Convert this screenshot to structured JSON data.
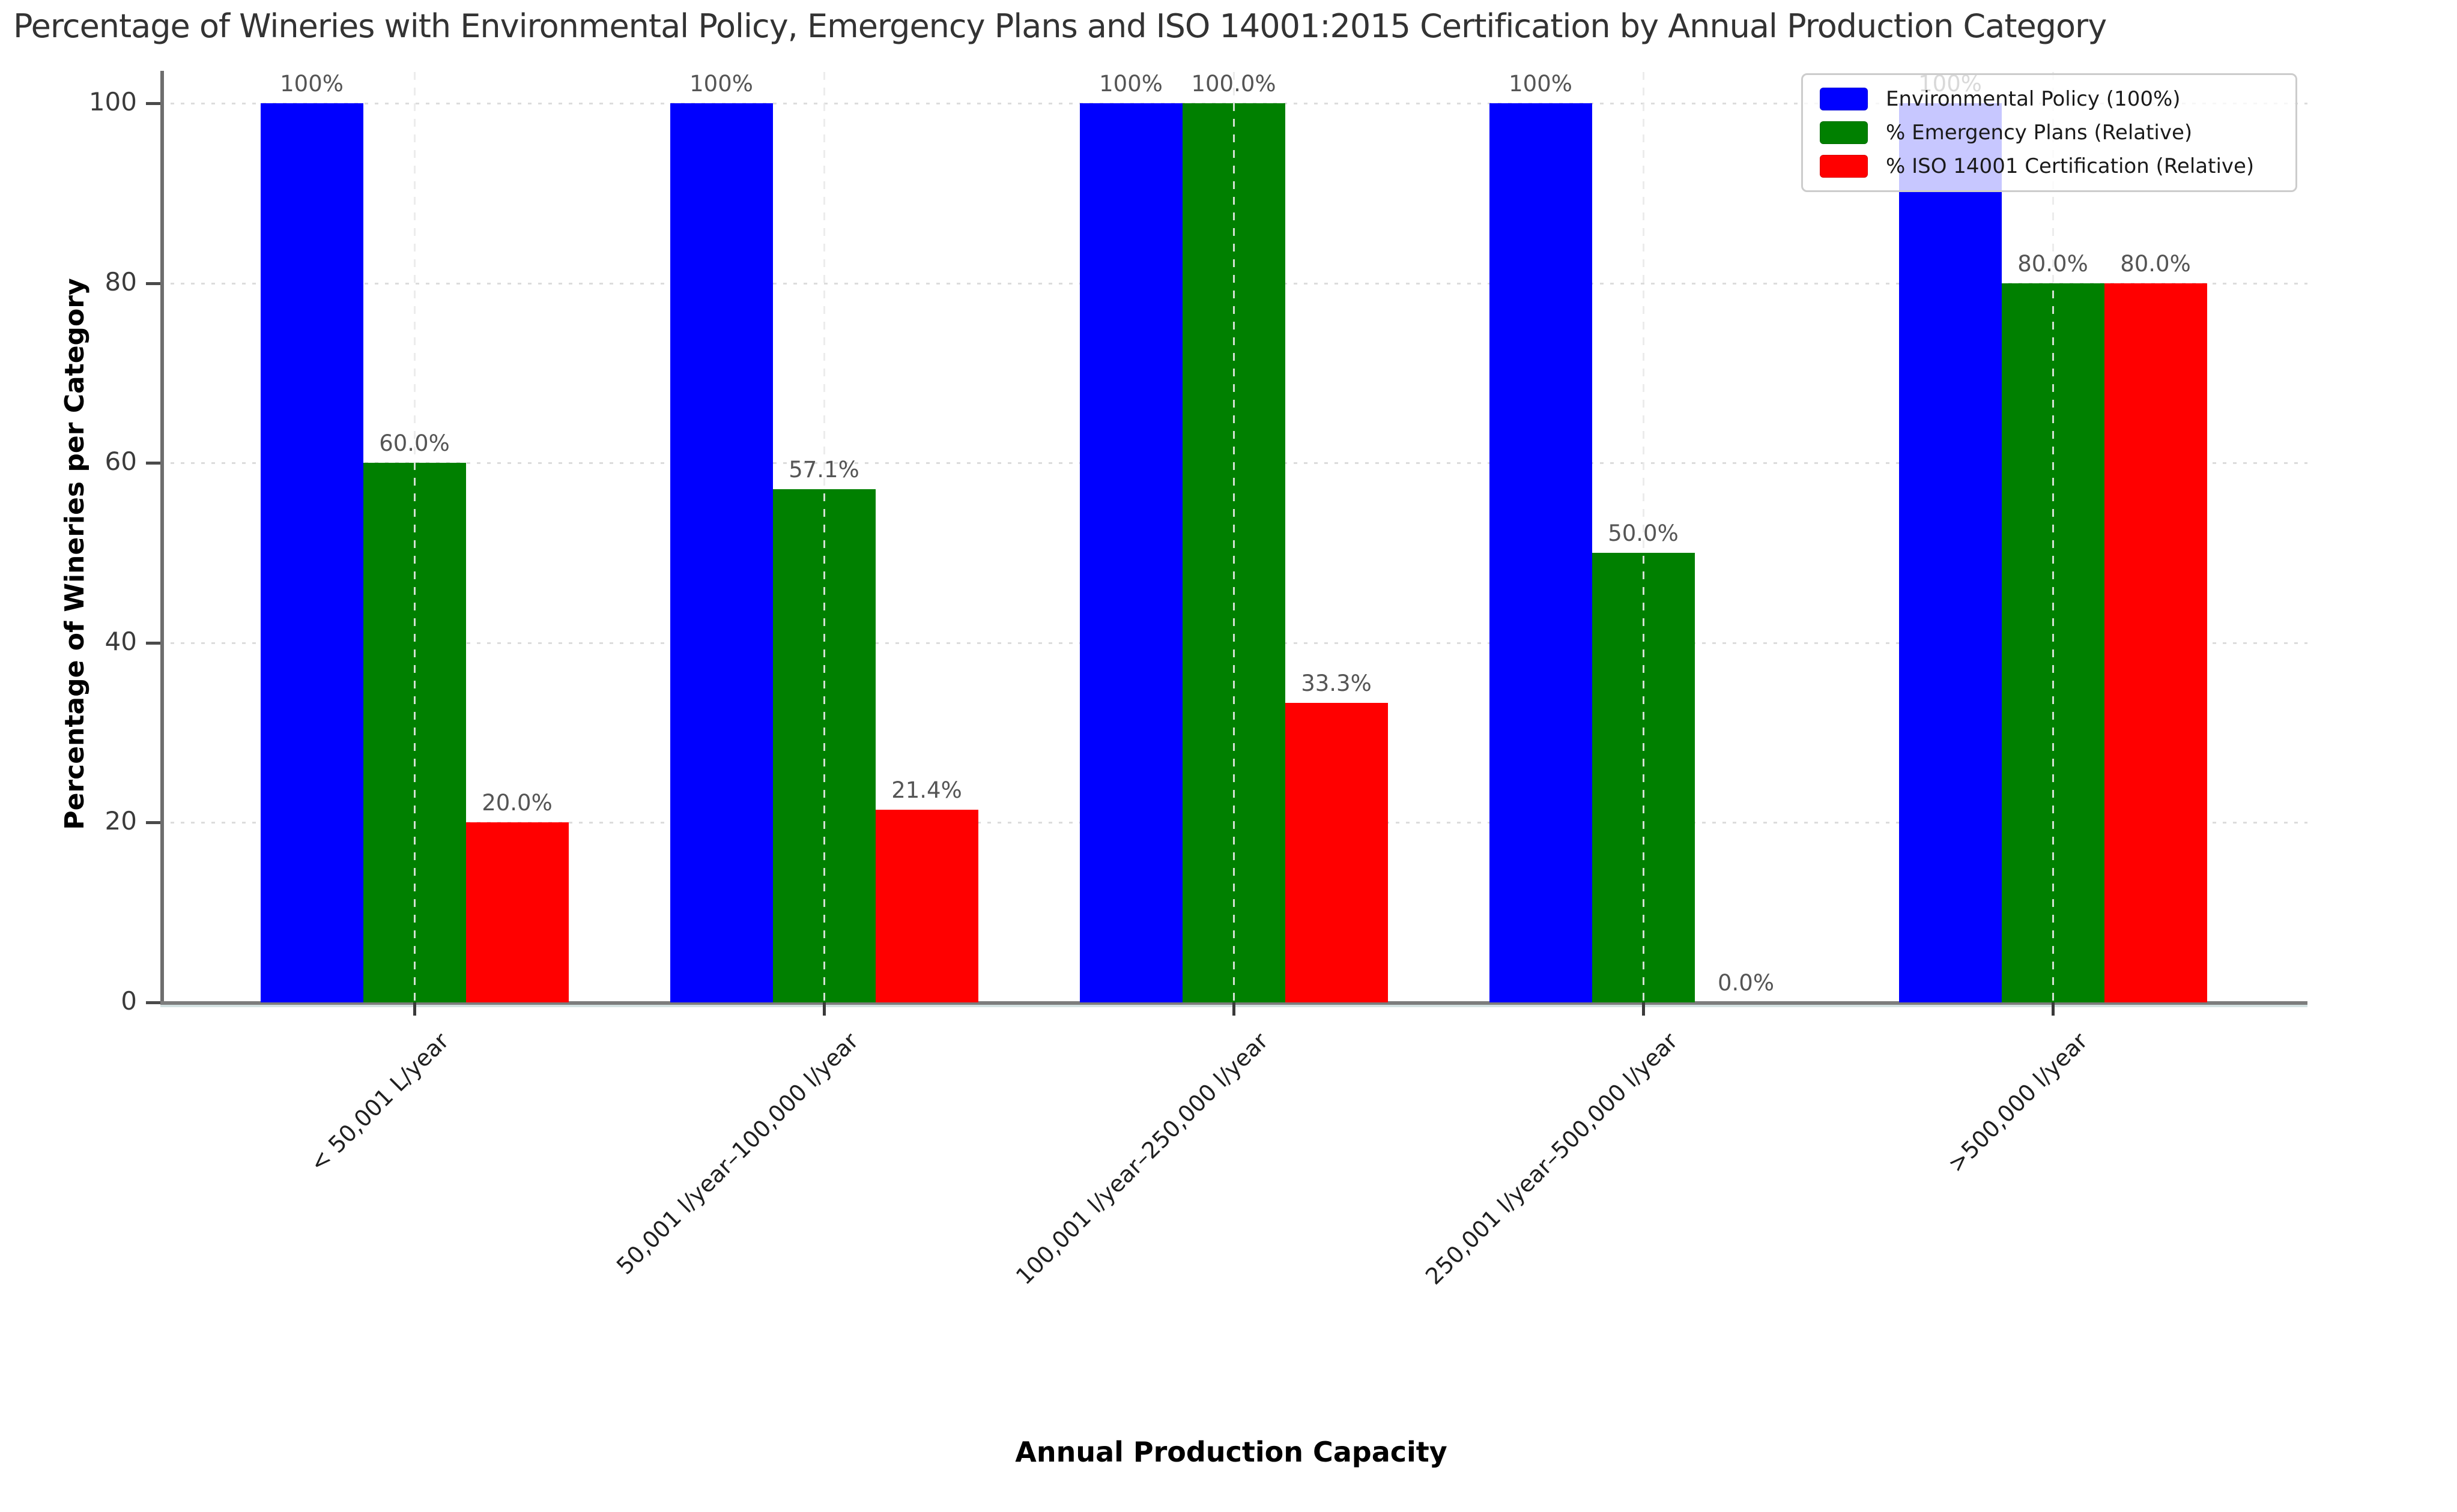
{
  "title": "Percentage of Wineries with Environmental Policy, Emergency Plans and ISO 14001:2015 Certification by Annual Production Category",
  "x_axis": {
    "label": "Annual Production Capacity",
    "tick_labels": [
      "< 50,001  L/year",
      "50,001  l/year–100,000  l/year",
      "100,001  l/year–250,000  l/year",
      "250,001  l/year–500,000  l/year",
      ">500,000  l/year"
    ]
  },
  "y_axis": {
    "label": "Percentage of Wineries per Category",
    "ticks": [
      0,
      20,
      40,
      60,
      80,
      100
    ]
  },
  "legend": {
    "items": [
      {
        "label": "Environmental Policy (100%)",
        "color": "#0000ff"
      },
      {
        "label": "% Emergency Plans (Relative)",
        "color": "#008000"
      },
      {
        "label": "% ISO 14001 Certification (Relative)",
        "color": "#ff0000"
      }
    ],
    "position": "upper right"
  },
  "chart_data": {
    "type": "bar",
    "title": "Percentage of Wineries with Environmental Policy, Emergency Plans and ISO 14001:2015 Certification by Annual Production Category",
    "xlabel": "Annual Production Capacity",
    "ylabel": "Percentage of Wineries per Category",
    "ylim": [
      0,
      100
    ],
    "yticks": [
      0,
      20,
      40,
      60,
      80,
      100
    ],
    "grid": "horizontal dotted behind bars, vertical dashed over bars",
    "legend_position": "upper right",
    "categories": [
      "< 50,001  L/year",
      "50,001  l/year–100,000  l/year",
      "100,001  l/year–250,000  l/year",
      "250,001  l/year–500,000  l/year",
      ">500,000  l/year"
    ],
    "series": [
      {
        "name": "Environmental Policy (100%)",
        "color": "#0000ff",
        "values": [
          100,
          100,
          100,
          100,
          100
        ],
        "value_labels": [
          "100%",
          "100%",
          "100%",
          "100%",
          "100%"
        ]
      },
      {
        "name": "% Emergency Plans (Relative)",
        "color": "#008000",
        "values": [
          60.0,
          57.1,
          100.0,
          50.0,
          80.0
        ],
        "value_labels": [
          "60.0%",
          "57.1%",
          "100.0%",
          "50.0%",
          "80.0%"
        ]
      },
      {
        "name": "% ISO 14001 Certification (Relative)",
        "color": "#ff0000",
        "values": [
          20.0,
          21.4,
          33.3,
          0.0,
          80.0
        ],
        "value_labels": [
          "20.0%",
          "21.4%",
          "33.3%",
          "0.0%",
          "80.0%"
        ]
      }
    ]
  }
}
